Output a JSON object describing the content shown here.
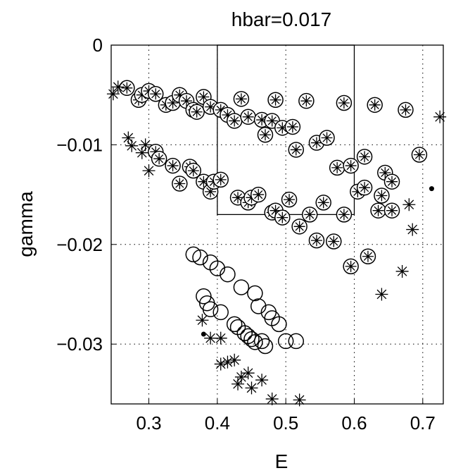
{
  "chart_data": {
    "type": "scatter",
    "title": "hbar=0.017",
    "xlabel": "E",
    "ylabel": "gamma",
    "xlim": [
      0.245,
      0.73
    ],
    "ylim": [
      -0.036,
      0.0
    ],
    "xticks": [
      0.3,
      0.4,
      0.5,
      0.6,
      0.7
    ],
    "xtick_labels": [
      "0.3",
      "0.4",
      "0.5",
      "0.6",
      "0.7"
    ],
    "yticks": [
      0,
      -0.01,
      -0.02,
      -0.03
    ],
    "ytick_labels": [
      "0",
      "−0.01",
      "−0.02",
      "−0.03"
    ],
    "grid": true,
    "grid_style": "dotted",
    "box_region": {
      "x": [
        0.4,
        0.6
      ],
      "y": [
        -0.017,
        0.0
      ]
    },
    "series": [
      {
        "marker": "circled-star",
        "points": [
          [
            0.268,
            -0.0043
          ],
          [
            0.285,
            -0.0055
          ],
          [
            0.29,
            -0.005
          ],
          [
            0.3,
            -0.0046
          ],
          [
            0.31,
            -0.0049
          ],
          [
            0.325,
            -0.006
          ],
          [
            0.335,
            -0.0058
          ],
          [
            0.345,
            -0.005
          ],
          [
            0.355,
            -0.0056
          ],
          [
            0.365,
            -0.0065
          ],
          [
            0.37,
            -0.0067
          ],
          [
            0.38,
            -0.0052
          ],
          [
            0.39,
            -0.0062
          ],
          [
            0.405,
            -0.0065
          ],
          [
            0.415,
            -0.007
          ],
          [
            0.425,
            -0.0076
          ],
          [
            0.435,
            -0.0054
          ],
          [
            0.445,
            -0.0072
          ],
          [
            0.465,
            -0.0075
          ],
          [
            0.47,
            -0.009
          ],
          [
            0.48,
            -0.0076
          ],
          [
            0.485,
            -0.0055
          ],
          [
            0.495,
            -0.0083
          ],
          [
            0.51,
            -0.0082
          ],
          [
            0.515,
            -0.0105
          ],
          [
            0.53,
            -0.0056
          ],
          [
            0.545,
            -0.0098
          ],
          [
            0.56,
            -0.0093
          ],
          [
            0.575,
            -0.0123
          ],
          [
            0.585,
            -0.0058
          ],
          [
            0.595,
            -0.0121
          ],
          [
            0.615,
            -0.0112
          ],
          [
            0.63,
            -0.006
          ],
          [
            0.675,
            -0.0065
          ],
          [
            0.695,
            -0.011
          ],
          [
            0.31,
            -0.0107
          ],
          [
            0.315,
            -0.0114
          ],
          [
            0.335,
            -0.0121
          ],
          [
            0.345,
            -0.0139
          ],
          [
            0.36,
            -0.0122
          ],
          [
            0.365,
            -0.0126
          ],
          [
            0.38,
            -0.0137
          ],
          [
            0.39,
            -0.0147
          ],
          [
            0.395,
            -0.0137
          ],
          [
            0.405,
            -0.0135
          ],
          [
            0.43,
            -0.0153
          ],
          [
            0.445,
            -0.0158
          ],
          [
            0.45,
            -0.0153
          ],
          [
            0.46,
            -0.015
          ],
          [
            0.48,
            -0.0168
          ],
          [
            0.485,
            -0.0166
          ],
          [
            0.495,
            -0.0173
          ],
          [
            0.505,
            -0.0155
          ],
          [
            0.52,
            -0.0182
          ],
          [
            0.535,
            -0.017
          ],
          [
            0.545,
            -0.0196
          ],
          [
            0.555,
            -0.0158
          ],
          [
            0.57,
            -0.0197
          ],
          [
            0.585,
            -0.017
          ],
          [
            0.595,
            -0.0222
          ],
          [
            0.605,
            -0.0147
          ],
          [
            0.615,
            -0.0143
          ],
          [
            0.62,
            -0.0212
          ],
          [
            0.635,
            -0.0166
          ],
          [
            0.64,
            -0.0151
          ],
          [
            0.645,
            -0.0128
          ],
          [
            0.655,
            -0.0137
          ],
          [
            0.655,
            -0.0166
          ]
        ]
      },
      {
        "marker": "star",
        "points": [
          [
            0.248,
            -0.0049
          ],
          [
            0.255,
            -0.0042
          ],
          [
            0.27,
            -0.0093
          ],
          [
            0.275,
            -0.0101
          ],
          [
            0.29,
            -0.0108
          ],
          [
            0.295,
            -0.01
          ],
          [
            0.3,
            -0.0126
          ],
          [
            0.68,
            -0.016
          ],
          [
            0.685,
            -0.0185
          ],
          [
            0.67,
            -0.0227
          ],
          [
            0.64,
            -0.025
          ],
          [
            0.725,
            -0.0072
          ],
          [
            0.378,
            -0.0276
          ],
          [
            0.39,
            -0.0294
          ],
          [
            0.405,
            -0.0294
          ],
          [
            0.405,
            -0.032
          ],
          [
            0.415,
            -0.0318
          ],
          [
            0.425,
            -0.0316
          ],
          [
            0.43,
            -0.034
          ],
          [
            0.435,
            -0.0333
          ],
          [
            0.445,
            -0.0329
          ],
          [
            0.45,
            -0.0344
          ],
          [
            0.465,
            -0.0336
          ],
          [
            0.48,
            -0.0355
          ],
          [
            0.52,
            -0.0356
          ]
        ]
      },
      {
        "marker": "circle",
        "points": [
          [
            0.365,
            -0.021
          ],
          [
            0.375,
            -0.0213
          ],
          [
            0.39,
            -0.0218
          ],
          [
            0.4,
            -0.0224
          ],
          [
            0.415,
            -0.023
          ],
          [
            0.435,
            -0.0243
          ],
          [
            0.455,
            -0.0249
          ],
          [
            0.46,
            -0.0262
          ],
          [
            0.475,
            -0.0268
          ],
          [
            0.48,
            -0.0274
          ],
          [
            0.49,
            -0.028
          ],
          [
            0.38,
            -0.0252
          ],
          [
            0.385,
            -0.0259
          ],
          [
            0.39,
            -0.0265
          ],
          [
            0.405,
            -0.0268
          ],
          [
            0.425,
            -0.028
          ],
          [
            0.43,
            -0.0283
          ],
          [
            0.44,
            -0.0289
          ],
          [
            0.445,
            -0.0292
          ],
          [
            0.45,
            -0.0295
          ],
          [
            0.455,
            -0.0298
          ],
          [
            0.465,
            -0.0297
          ],
          [
            0.47,
            -0.0302
          ],
          [
            0.5,
            -0.0297
          ],
          [
            0.515,
            -0.0297
          ]
        ]
      },
      {
        "marker": "dot",
        "points": [
          [
            0.713,
            -0.0144
          ],
          [
            0.38,
            -0.029
          ]
        ]
      }
    ]
  }
}
